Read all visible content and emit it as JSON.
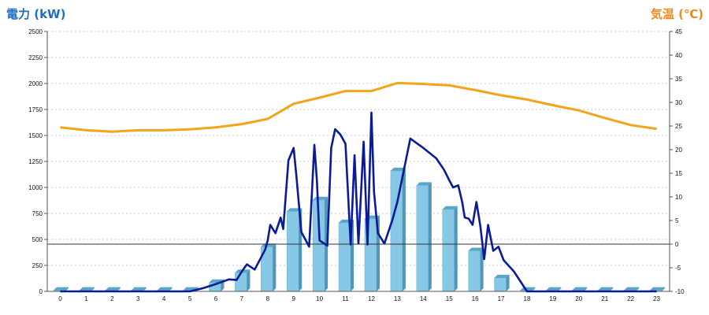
{
  "chart_data": {
    "type": "bar",
    "left_axis_title": "電力 (kW)",
    "right_axis_title": "気温 (℃)",
    "x_ticks": [
      "0",
      "1",
      "2",
      "3",
      "4",
      "5",
      "6",
      "7",
      "8",
      "9",
      "10",
      "11",
      "12",
      "13",
      "14",
      "15",
      "16",
      "17",
      "18",
      "19",
      "20",
      "21",
      "22",
      "23"
    ],
    "left_axis": {
      "min": 0,
      "max": 2500,
      "step": 250
    },
    "right_axis": {
      "min": -10,
      "max": 45,
      "step": 5
    },
    "grid": true,
    "reference_line_right_value": 0,
    "bars": {
      "axis": "left",
      "color": "#86c8e6",
      "values": [
        10,
        10,
        10,
        10,
        10,
        10,
        85,
        180,
        430,
        770,
        880,
        660,
        700,
        1160,
        1020,
        790,
        390,
        130,
        10,
        10,
        10,
        10,
        10,
        10
      ]
    },
    "power_line": {
      "axis": "left",
      "color": "#0b1a99",
      "x": [
        0,
        5,
        5.5,
        6,
        6.5,
        6.8,
        7,
        7.2,
        7.5,
        7.9,
        8,
        8.1,
        8.3,
        8.5,
        8.6,
        8.8,
        9,
        9.1,
        9.3,
        9.6,
        9.8,
        9.9,
        10,
        10.3,
        10.45,
        10.6,
        10.8,
        11,
        11.2,
        11.35,
        11.5,
        11.7,
        11.85,
        12,
        12.1,
        12.25,
        12.5,
        12.8,
        13,
        13.5,
        14,
        14.5,
        14.8,
        15,
        15.15,
        15.35,
        15.5,
        15.6,
        15.75,
        15.9,
        16.05,
        16.2,
        16.35,
        16.5,
        16.7,
        16.9,
        17.1,
        17.5,
        18,
        23
      ],
      "y": [
        0,
        0,
        30,
        70,
        115,
        110,
        190,
        260,
        210,
        400,
        490,
        640,
        560,
        710,
        600,
        1260,
        1380,
        1130,
        570,
        430,
        1410,
        1060,
        490,
        440,
        1380,
        1560,
        1510,
        1420,
        450,
        1310,
        460,
        1440,
        450,
        1720,
        960,
        560,
        460,
        680,
        860,
        1470,
        1380,
        1280,
        1170,
        1070,
        1000,
        1020,
        860,
        710,
        700,
        640,
        860,
        630,
        310,
        640,
        390,
        430,
        300,
        190,
        0,
        0
      ]
    },
    "temperature_line": {
      "axis": "right",
      "color": "#f5a31a",
      "x": [
        0,
        1,
        2,
        3,
        4,
        5,
        6,
        7,
        8,
        9,
        10,
        11,
        12,
        13,
        14,
        15,
        16,
        17,
        18,
        19,
        20,
        21,
        22,
        23
      ],
      "y": [
        24.7,
        24.1,
        23.8,
        24.1,
        24.1,
        24.3,
        24.7,
        25.4,
        26.5,
        29.7,
        31.0,
        32.4,
        32.4,
        34.1,
        33.9,
        33.6,
        32.6,
        31.5,
        30.6,
        29.4,
        28.3,
        26.7,
        25.2,
        24.4
      ]
    }
  }
}
